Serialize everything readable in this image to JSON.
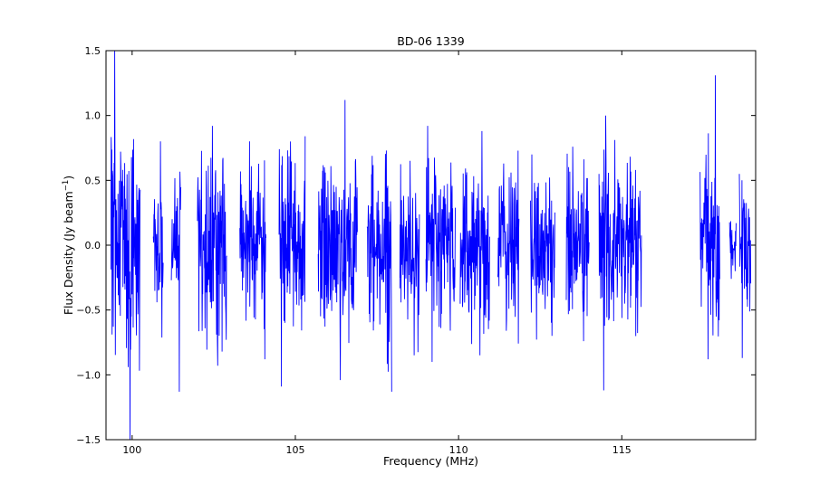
{
  "chart_data": {
    "type": "line",
    "title": "BD-06 1339",
    "xlabel": "Frequency (MHz)",
    "ylabel_main": "Flux Density (Jy beam",
    "ylabel_sup": "−1",
    "ylabel_close": ")",
    "xlim": [
      99.2,
      119.1
    ],
    "ylim": [
      -1.5,
      1.5
    ],
    "x_ticks": [
      100,
      105,
      110,
      115
    ],
    "x_tick_labels": [
      "100",
      "105",
      "110",
      "115"
    ],
    "y_ticks": [
      -1.5,
      -1.0,
      -0.5,
      0.0,
      0.5,
      1.0,
      1.5
    ],
    "y_tick_labels": [
      "−1.5",
      "−1.0",
      "−0.5",
      "0.0",
      "0.5",
      "1.0",
      "1.5"
    ],
    "grid": false,
    "line_color": "#0000ff",
    "series": [
      {
        "segments": [
          {
            "x_start": 99.35,
            "x_end": 100.25,
            "amplitude": 0.45,
            "peak_max": 1.5,
            "peak_min": -1.5
          },
          {
            "x_start": 100.65,
            "x_end": 100.95,
            "amplitude": 0.28,
            "peak_max": 0.8,
            "peak_min": -0.35
          },
          {
            "x_start": 101.2,
            "x_end": 101.5,
            "amplitude": 0.25,
            "peak_max": 0.45,
            "peak_min": -1.13
          },
          {
            "x_start": 102.0,
            "x_end": 102.9,
            "amplitude": 0.35,
            "peak_max": 0.92,
            "peak_min": -0.93
          },
          {
            "x_start": 103.3,
            "x_end": 104.1,
            "amplitude": 0.33,
            "peak_max": 0.8,
            "peak_min": -0.88
          },
          {
            "x_start": 104.5,
            "x_end": 105.3,
            "amplitude": 0.33,
            "peak_max": 0.74,
            "peak_min": -1.09
          },
          {
            "x_start": 105.7,
            "x_end": 106.9,
            "amplitude": 0.36,
            "peak_max": 1.12,
            "peak_min": -1.04
          },
          {
            "x_start": 107.2,
            "x_end": 107.95,
            "amplitude": 0.33,
            "peak_max": 0.73,
            "peak_min": -1.13
          },
          {
            "x_start": 108.2,
            "x_end": 108.8,
            "amplitude": 0.3,
            "peak_max": 0.65,
            "peak_min": -0.85
          },
          {
            "x_start": 109.0,
            "x_end": 109.9,
            "amplitude": 0.35,
            "peak_max": 0.92,
            "peak_min": -0.9
          },
          {
            "x_start": 110.05,
            "x_end": 110.95,
            "amplitude": 0.34,
            "peak_max": 0.88,
            "peak_min": -0.85
          },
          {
            "x_start": 111.2,
            "x_end": 111.85,
            "amplitude": 0.32,
            "peak_max": 0.63,
            "peak_min": -0.66
          },
          {
            "x_start": 112.2,
            "x_end": 112.95,
            "amplitude": 0.3,
            "peak_max": 0.7,
            "peak_min": -0.7
          },
          {
            "x_start": 113.3,
            "x_end": 114.0,
            "amplitude": 0.32,
            "peak_max": 0.76,
            "peak_min": -0.74
          },
          {
            "x_start": 114.3,
            "x_end": 115.6,
            "amplitude": 0.34,
            "peak_max": 1.0,
            "peak_min": -1.12
          },
          {
            "x_start": 117.4,
            "x_end": 118.0,
            "amplitude": 0.35,
            "peak_max": 1.31,
            "peak_min": -0.88
          },
          {
            "x_start": 118.3,
            "x_end": 118.5,
            "amplitude": 0.12,
            "peak_max": -0.1,
            "peak_min": -0.2
          },
          {
            "x_start": 118.6,
            "x_end": 118.95,
            "amplitude": 0.3,
            "peak_max": 0.55,
            "peak_min": -0.87
          }
        ]
      }
    ]
  }
}
